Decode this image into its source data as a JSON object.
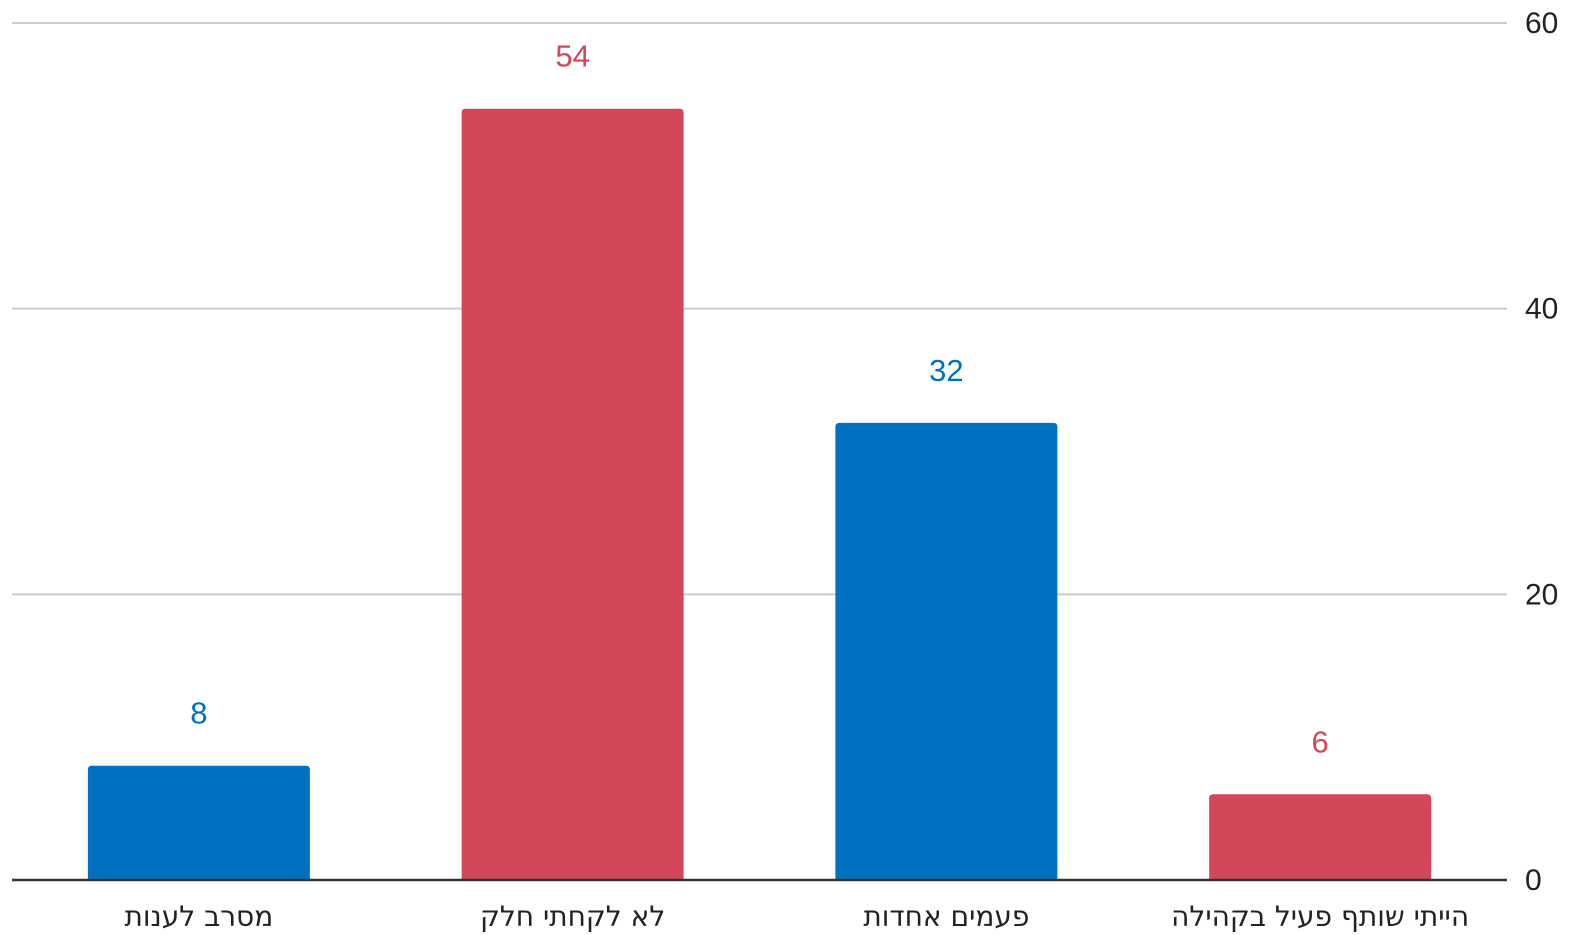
{
  "chart_data": {
    "type": "bar",
    "categories": [
      "מסרב לענות",
      "לא לקחתי חלק",
      "פעמים אחדות",
      "הייתי שותף פעיל בקהילה"
    ],
    "values": [
      8,
      54,
      32,
      6
    ],
    "bar_colors": [
      "#0070C0",
      "#D4475A",
      "#0070C0",
      "#D4475A"
    ],
    "title": "",
    "xlabel": "",
    "ylabel": "",
    "ylim": [
      0,
      60
    ],
    "y_ticks": [
      0,
      20,
      40,
      60
    ],
    "y_axis_side": "right",
    "grid": true,
    "legend": "none",
    "data_labels": true
  }
}
